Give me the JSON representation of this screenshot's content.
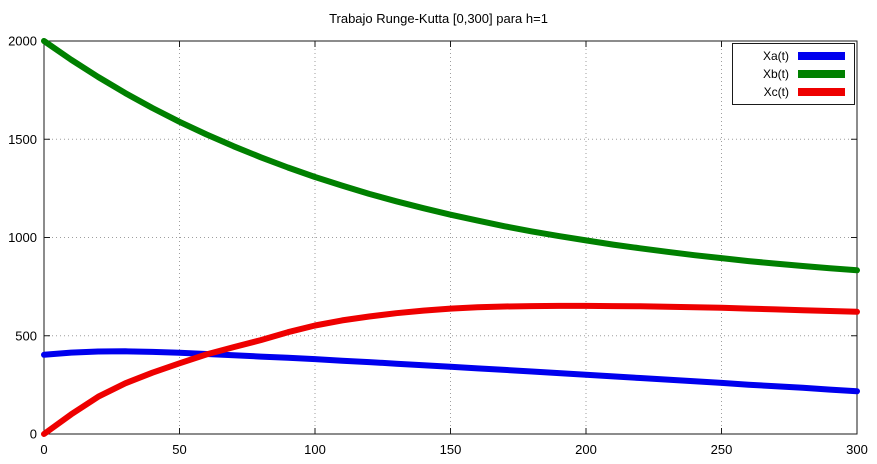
{
  "chart_data": {
    "type": "line",
    "title": "Trabajo Runge-Kutta [0,300] para h=1",
    "xlabel": "",
    "ylabel": "",
    "xlim": [
      0,
      300
    ],
    "ylim": [
      0,
      2000
    ],
    "x_ticks": [
      0,
      50,
      100,
      150,
      200,
      250,
      300
    ],
    "y_ticks": [
      0,
      500,
      1000,
      1500,
      2000
    ],
    "grid": true,
    "grid_style": "dotted",
    "legend_position": "top-right",
    "legend_boxed": true,
    "x": [
      0,
      10,
      20,
      30,
      40,
      50,
      60,
      70,
      80,
      90,
      100,
      110,
      120,
      130,
      140,
      150,
      160,
      170,
      180,
      190,
      200,
      210,
      220,
      230,
      240,
      250,
      260,
      270,
      280,
      290,
      300
    ],
    "series": [
      {
        "name": "Xa(t)",
        "color": "#0000ee",
        "values": [
          403,
          414,
          420,
          421,
          418,
          413,
          407,
          401,
          394,
          388,
          381,
          373,
          366,
          358,
          350,
          342,
          334,
          326,
          318,
          310,
          302,
          293,
          285,
          277,
          268,
          260,
          251,
          243,
          235,
          226,
          218
        ]
      },
      {
        "name": "Xb(t)",
        "color": "#008000",
        "values": [
          2000,
          1905,
          1817,
          1735,
          1659,
          1589,
          1524,
          1464,
          1408,
          1356,
          1308,
          1264,
          1222,
          1184,
          1149,
          1116,
          1086,
          1057,
          1031,
          1007,
          985,
          964,
          945,
          927,
          910,
          895,
          880,
          867,
          855,
          844,
          833
        ]
      },
      {
        "name": "Xc(t)",
        "color": "#ee0000",
        "values": [
          0,
          100,
          190,
          258,
          312,
          360,
          405,
          442,
          478,
          518,
          552,
          578,
          598,
          615,
          628,
          638,
          645,
          649,
          651,
          652,
          652,
          651,
          650,
          648,
          645,
          642,
          638,
          634,
          630,
          626,
          622
        ]
      }
    ]
  },
  "colors": {
    "background": "#ffffff",
    "frame": "#1a1a1a",
    "grid": "#9e9e9e",
    "text": "#000000"
  }
}
